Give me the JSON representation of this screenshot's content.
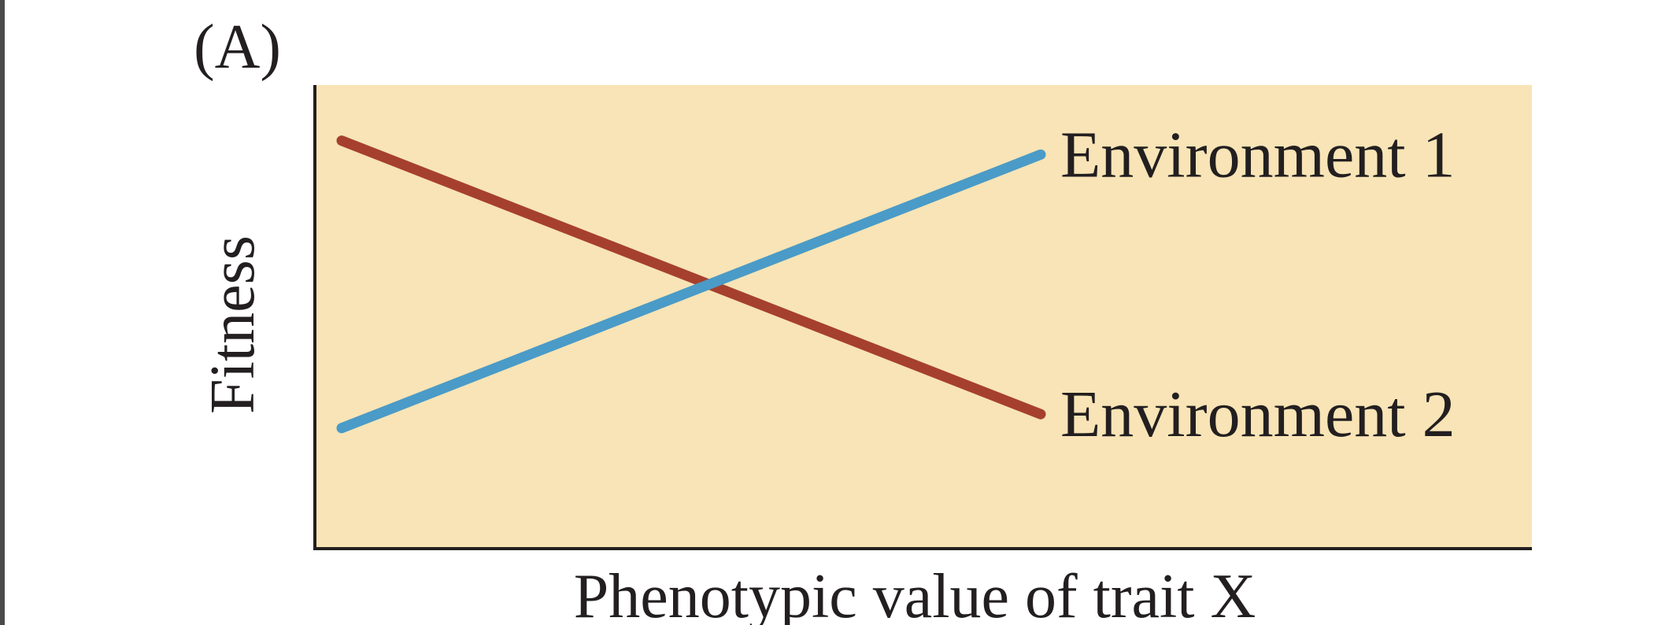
{
  "chart_data": {
    "type": "line",
    "panel_label": "(A)",
    "title": "",
    "xlabel": "Phenotypic value of trait X",
    "ylabel": "Fitness",
    "x_ticks": [],
    "y_ticks": [],
    "grid": false,
    "xlim": [
      0,
      1
    ],
    "ylim": [
      0,
      1
    ],
    "series": [
      {
        "name": "Environment 1",
        "color": "#4a9bc7",
        "x": [
          0,
          1
        ],
        "y": [
          0.26,
          0.85
        ]
      },
      {
        "name": "Environment 2",
        "color": "#a6402e",
        "x": [
          0,
          1
        ],
        "y": [
          0.88,
          0.29
        ]
      }
    ],
    "plot_background": "#f8e4b6",
    "axis_color": "#231f20"
  }
}
